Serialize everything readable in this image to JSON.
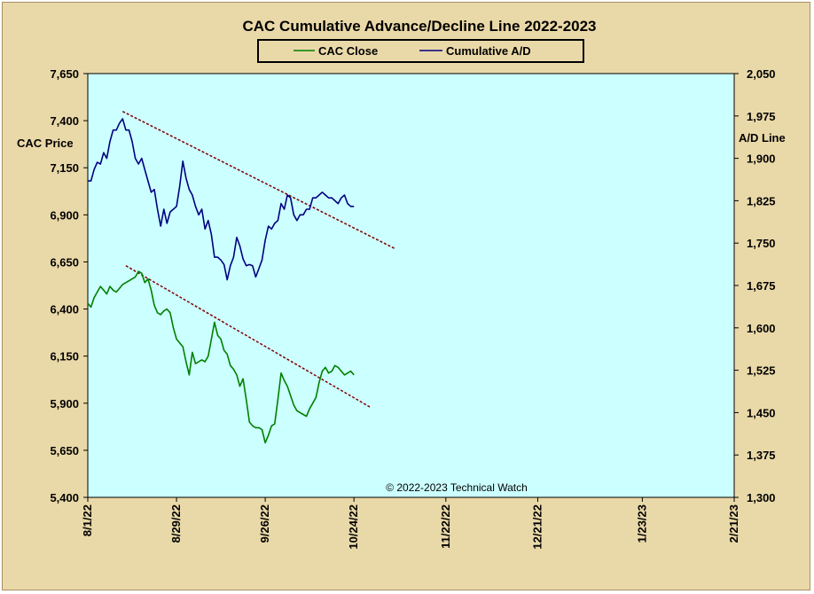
{
  "chart_data": {
    "type": "line",
    "title": "CAC Cumulative  Advance/Decline  Line  2022-2023",
    "left_axis": {
      "label": "CAC Price",
      "ylim": [
        5400,
        7650
      ],
      "ticks": [
        "5,400",
        "5,650",
        "5,900",
        "6,150",
        "6,400",
        "6,650",
        "6,900",
        "7,150",
        "7,400",
        "7,650"
      ]
    },
    "right_axis": {
      "label": "A/D Line",
      "ylim": [
        1300,
        2050
      ],
      "ticks": [
        "1,300",
        "1,375",
        "1,450",
        "1,525",
        "1,600",
        "1,675",
        "1,750",
        "1,825",
        "1,900",
        "1,975",
        "2,050"
      ]
    },
    "x_axis": {
      "ticks": [
        "8/1/22",
        "8/29/22",
        "9/26/22",
        "10/24/22",
        "11/22/22",
        "12/21/22",
        "1/23/23",
        "2/21/23"
      ],
      "tick_days": [
        0,
        28,
        56,
        84,
        113,
        142,
        175,
        204
      ],
      "xlim": [
        0,
        204
      ]
    },
    "legend": {
      "placement": "top-center",
      "entries": [
        "CAC Close",
        "Cumulative A/D"
      ]
    },
    "annotation": "© 2022-2023  Technical  Watch",
    "grid": false,
    "colors": {
      "cac_close": "#008000",
      "cumulative_ad": "#000080",
      "trendline": "#800000",
      "plot_bg": "#ccffff",
      "frame_bg": "#ead9a8"
    },
    "series": [
      {
        "name": "CAC Close",
        "axis": "left",
        "x": [
          0,
          1,
          2,
          3,
          4,
          5,
          6,
          7,
          8,
          9,
          10,
          11,
          12,
          13,
          14,
          15,
          16,
          17,
          18,
          19,
          20,
          21,
          22,
          23,
          24,
          25,
          26,
          27,
          28,
          29,
          30,
          31,
          32,
          33,
          34,
          35,
          36,
          37,
          38,
          39,
          40,
          41,
          42,
          43,
          44,
          45,
          46,
          47,
          48,
          49,
          50,
          51,
          52,
          53,
          54,
          55,
          56,
          57,
          58,
          59,
          60,
          61,
          62,
          63,
          64,
          65,
          66,
          67,
          68,
          69,
          70,
          71,
          72,
          73,
          74,
          75,
          76,
          77,
          78,
          79,
          80,
          81,
          82,
          83,
          84
        ],
        "values": [
          6430,
          6410,
          6460,
          6490,
          6520,
          6500,
          6480,
          6520,
          6500,
          6490,
          6510,
          6530,
          6540,
          6550,
          6560,
          6570,
          6600,
          6590,
          6540,
          6560,
          6500,
          6420,
          6380,
          6370,
          6390,
          6400,
          6380,
          6300,
          6240,
          6220,
          6200,
          6120,
          6050,
          6170,
          6110,
          6120,
          6130,
          6120,
          6150,
          6240,
          6330,
          6260,
          6240,
          6180,
          6160,
          6100,
          6080,
          6050,
          5990,
          6030,
          5920,
          5800,
          5780,
          5770,
          5770,
          5760,
          5690,
          5730,
          5780,
          5790,
          5920,
          6060,
          6020,
          5990,
          5940,
          5890,
          5860,
          5850,
          5840,
          5830,
          5870,
          5900,
          5930,
          6010,
          6070,
          6090,
          6060,
          6070,
          6100,
          6090,
          6070,
          6050,
          6060,
          6070,
          6050
        ],
        "values_drawn_note": "",
        "draw_x": [
          0,
          1,
          2,
          3,
          4,
          5,
          6,
          7,
          8,
          9,
          10,
          11,
          12,
          13,
          14,
          15,
          16,
          17,
          18,
          19,
          20,
          21,
          22,
          23,
          24,
          25,
          26,
          27,
          28,
          29,
          30,
          31,
          32,
          33,
          34,
          35,
          36,
          37,
          38,
          39,
          40,
          41,
          42,
          43,
          44,
          45,
          46,
          47,
          48,
          49,
          50,
          51,
          52,
          53,
          54,
          55,
          56,
          57,
          58,
          59,
          60,
          61,
          62,
          63,
          64,
          65,
          66,
          67,
          68,
          69,
          70,
          71,
          72,
          73,
          74,
          75,
          76,
          77,
          78,
          79,
          80,
          81,
          82,
          83,
          84
        ]
      },
      {
        "name": "Cumulative A/D",
        "axis": "right",
        "x": [
          0,
          1,
          2,
          3,
          4,
          5,
          6,
          7,
          8,
          9,
          10,
          11,
          12,
          13,
          14,
          15,
          16,
          17,
          18,
          19,
          20,
          21,
          22,
          23,
          24,
          25,
          26,
          27,
          28,
          29,
          30,
          31,
          32,
          33,
          34,
          35,
          36,
          37,
          38,
          39,
          40,
          41,
          42,
          43,
          44,
          45,
          46,
          47,
          48,
          49,
          50,
          51,
          52,
          53,
          54,
          55,
          56,
          57,
          58,
          59,
          60,
          61,
          62,
          63,
          64,
          65,
          66,
          67,
          68,
          69,
          70,
          71,
          72,
          73,
          74,
          75,
          76,
          77,
          78,
          79,
          80,
          81,
          82,
          83,
          84
        ],
        "values": [
          1860,
          1860,
          1880,
          1893,
          1890,
          1910,
          1900,
          1930,
          1950,
          1950,
          1962,
          1970,
          1950,
          1950,
          1930,
          1900,
          1890,
          1900,
          1880,
          1860,
          1840,
          1845,
          1810,
          1780,
          1810,
          1785,
          1805,
          1810,
          1815,
          1850,
          1895,
          1865,
          1845,
          1835,
          1815,
          1800,
          1810,
          1775,
          1790,
          1765,
          1725,
          1725,
          1720,
          1712,
          1685,
          1710,
          1725,
          1760,
          1745,
          1722,
          1710,
          1712,
          1710,
          1690,
          1705,
          1720,
          1755,
          1780,
          1775,
          1785,
          1790,
          1820,
          1810,
          1835,
          1830,
          1800,
          1790,
          1800,
          1800,
          1810,
          1810,
          1830,
          1830,
          1835,
          1840,
          1835,
          1830,
          1830,
          1825,
          1820,
          1830,
          1835,
          1820,
          1815,
          1815
        ],
        "draw_x": [
          0,
          1,
          2,
          3,
          4,
          5,
          6,
          7,
          8,
          9,
          10,
          11,
          12,
          13,
          14,
          15,
          16,
          17,
          18,
          19,
          20,
          21,
          22,
          23,
          24,
          25,
          26,
          27,
          28,
          29,
          30,
          31,
          32,
          33,
          34,
          35,
          36,
          37,
          38,
          39,
          40,
          41,
          42,
          43,
          44,
          45,
          46,
          47,
          48,
          49,
          50,
          51,
          52,
          53,
          54,
          55,
          56,
          57,
          58,
          59,
          60,
          61,
          62,
          63,
          64,
          65,
          66,
          67,
          68,
          69,
          70,
          71,
          72,
          73,
          74,
          75,
          76,
          77,
          78,
          79,
          80,
          81,
          82,
          83,
          84
        ]
      }
    ],
    "trendlines": [
      {
        "axis": "right",
        "from": [
          11,
          1983
        ],
        "to": [
          97,
          1740
        ]
      },
      {
        "axis": "left",
        "from": [
          12,
          6630
        ],
        "to": [
          89,
          5880
        ]
      }
    ]
  }
}
